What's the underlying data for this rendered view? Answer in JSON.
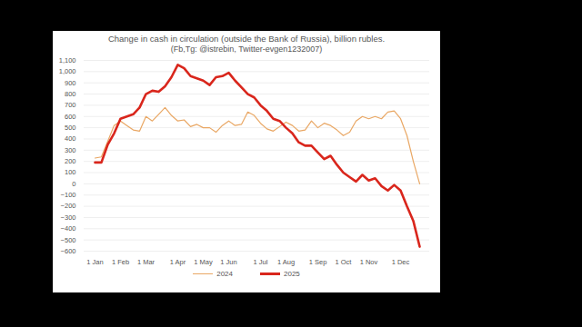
{
  "chart_data": {
    "type": "line",
    "title": "Change in cash in circulation (outside the Bank of Russia), billion rubles.",
    "subtitle": "(Fb,Tg: @istrebin, Twitter-evgen1232007)",
    "categories": [
      "1 Jan",
      null,
      null,
      null,
      "1 Feb",
      null,
      null,
      null,
      "1 Mar",
      null,
      null,
      null,
      null,
      "1 Apr",
      null,
      null,
      null,
      "1 May",
      null,
      null,
      null,
      "1 Jun",
      null,
      null,
      null,
      null,
      "1 Jul",
      null,
      null,
      null,
      "1 Aug",
      null,
      null,
      null,
      null,
      "1 Sep",
      null,
      null,
      null,
      "1 Oct",
      null,
      null,
      null,
      "1 Nov",
      null,
      null,
      null,
      null,
      "1 Dec",
      null,
      null,
      null
    ],
    "series": [
      {
        "name": "2024",
        "color": "#e9a764",
        "values": [
          230,
          240,
          380,
          520,
          560,
          520,
          480,
          470,
          600,
          560,
          620,
          680,
          610,
          560,
          570,
          510,
          530,
          500,
          500,
          460,
          520,
          560,
          520,
          530,
          640,
          610,
          540,
          490,
          470,
          510,
          550,
          520,
          470,
          480,
          560,
          500,
          540,
          520,
          480,
          430,
          460,
          560,
          600,
          580,
          600,
          580,
          640,
          650,
          580,
          430,
          200,
          0
        ]
      },
      {
        "name": "2025",
        "color": "#d9261c",
        "values": [
          190,
          190,
          350,
          450,
          580,
          600,
          620,
          680,
          800,
          830,
          820,
          870,
          950,
          1060,
          1030,
          960,
          940,
          920,
          880,
          950,
          960,
          990,
          920,
          860,
          800,
          770,
          700,
          650,
          580,
          560,
          500,
          450,
          370,
          340,
          340,
          280,
          220,
          250,
          170,
          100,
          60,
          20,
          80,
          30,
          50,
          -20,
          -60,
          -10,
          -60,
          -200,
          -330,
          -560
        ]
      }
    ],
    "ylim": [
      -600,
      1100
    ],
    "yticks": [
      -600,
      -500,
      -400,
      -300,
      -200,
      -100,
      0,
      100,
      200,
      300,
      400,
      500,
      600,
      700,
      800,
      900,
      1000,
      1100
    ],
    "grid": true,
    "legend": "bottom"
  }
}
